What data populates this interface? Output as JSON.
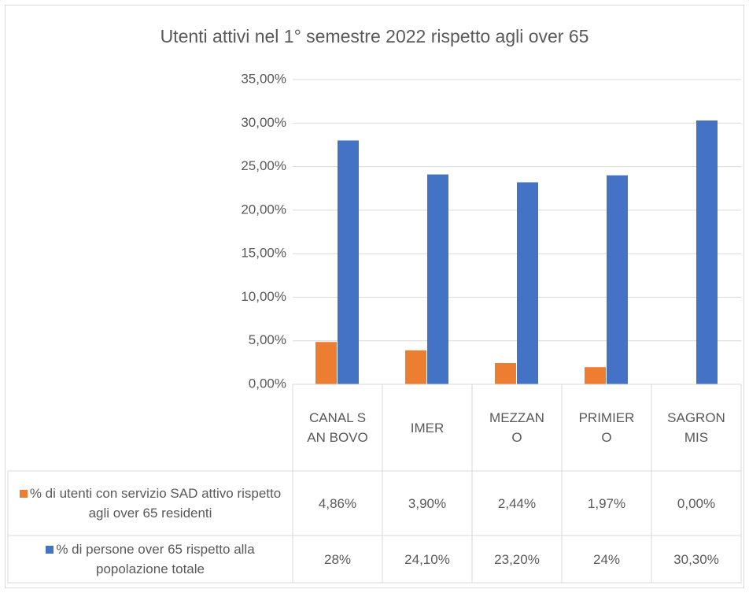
{
  "chart_data": {
    "type": "bar",
    "title": "Utenti attivi nel 1° semestre 2022 rispetto agli over 65",
    "categories": [
      "CANAL SAN BOVO",
      "IMER",
      "MEZZANO",
      "PRIMIERO",
      "SAGRONMIS"
    ],
    "series": [
      {
        "name": "% di utenti con servizio SAD attivo rispetto agli over 65 residenti",
        "color": "#ed7d31",
        "values": [
          4.86,
          3.9,
          2.44,
          1.97,
          0.0
        ],
        "value_labels": [
          "4,86%",
          "3,90%",
          "2,44%",
          "1,97%",
          "0,00%"
        ]
      },
      {
        "name": "% di persone over 65 rispetto alla popolazione totale",
        "color": "#4472c4",
        "values": [
          28,
          24.1,
          23.2,
          24,
          30.3
        ],
        "value_labels": [
          "28%",
          "24,10%",
          "23,20%",
          "24%",
          "30,30%"
        ]
      }
    ],
    "ylim": [
      0,
      35
    ],
    "yticks": [
      {
        "value": 0,
        "label": "0,00%"
      },
      {
        "value": 5,
        "label": "5,00%"
      },
      {
        "value": 10,
        "label": "10,00%"
      },
      {
        "value": 15,
        "label": "15,00%"
      },
      {
        "value": 20,
        "label": "20,00%"
      },
      {
        "value": 25,
        "label": "25,00%"
      },
      {
        "value": 30,
        "label": "30,00%"
      },
      {
        "value": 35,
        "label": "35,00%"
      }
    ],
    "grid": true,
    "data_table": true
  }
}
